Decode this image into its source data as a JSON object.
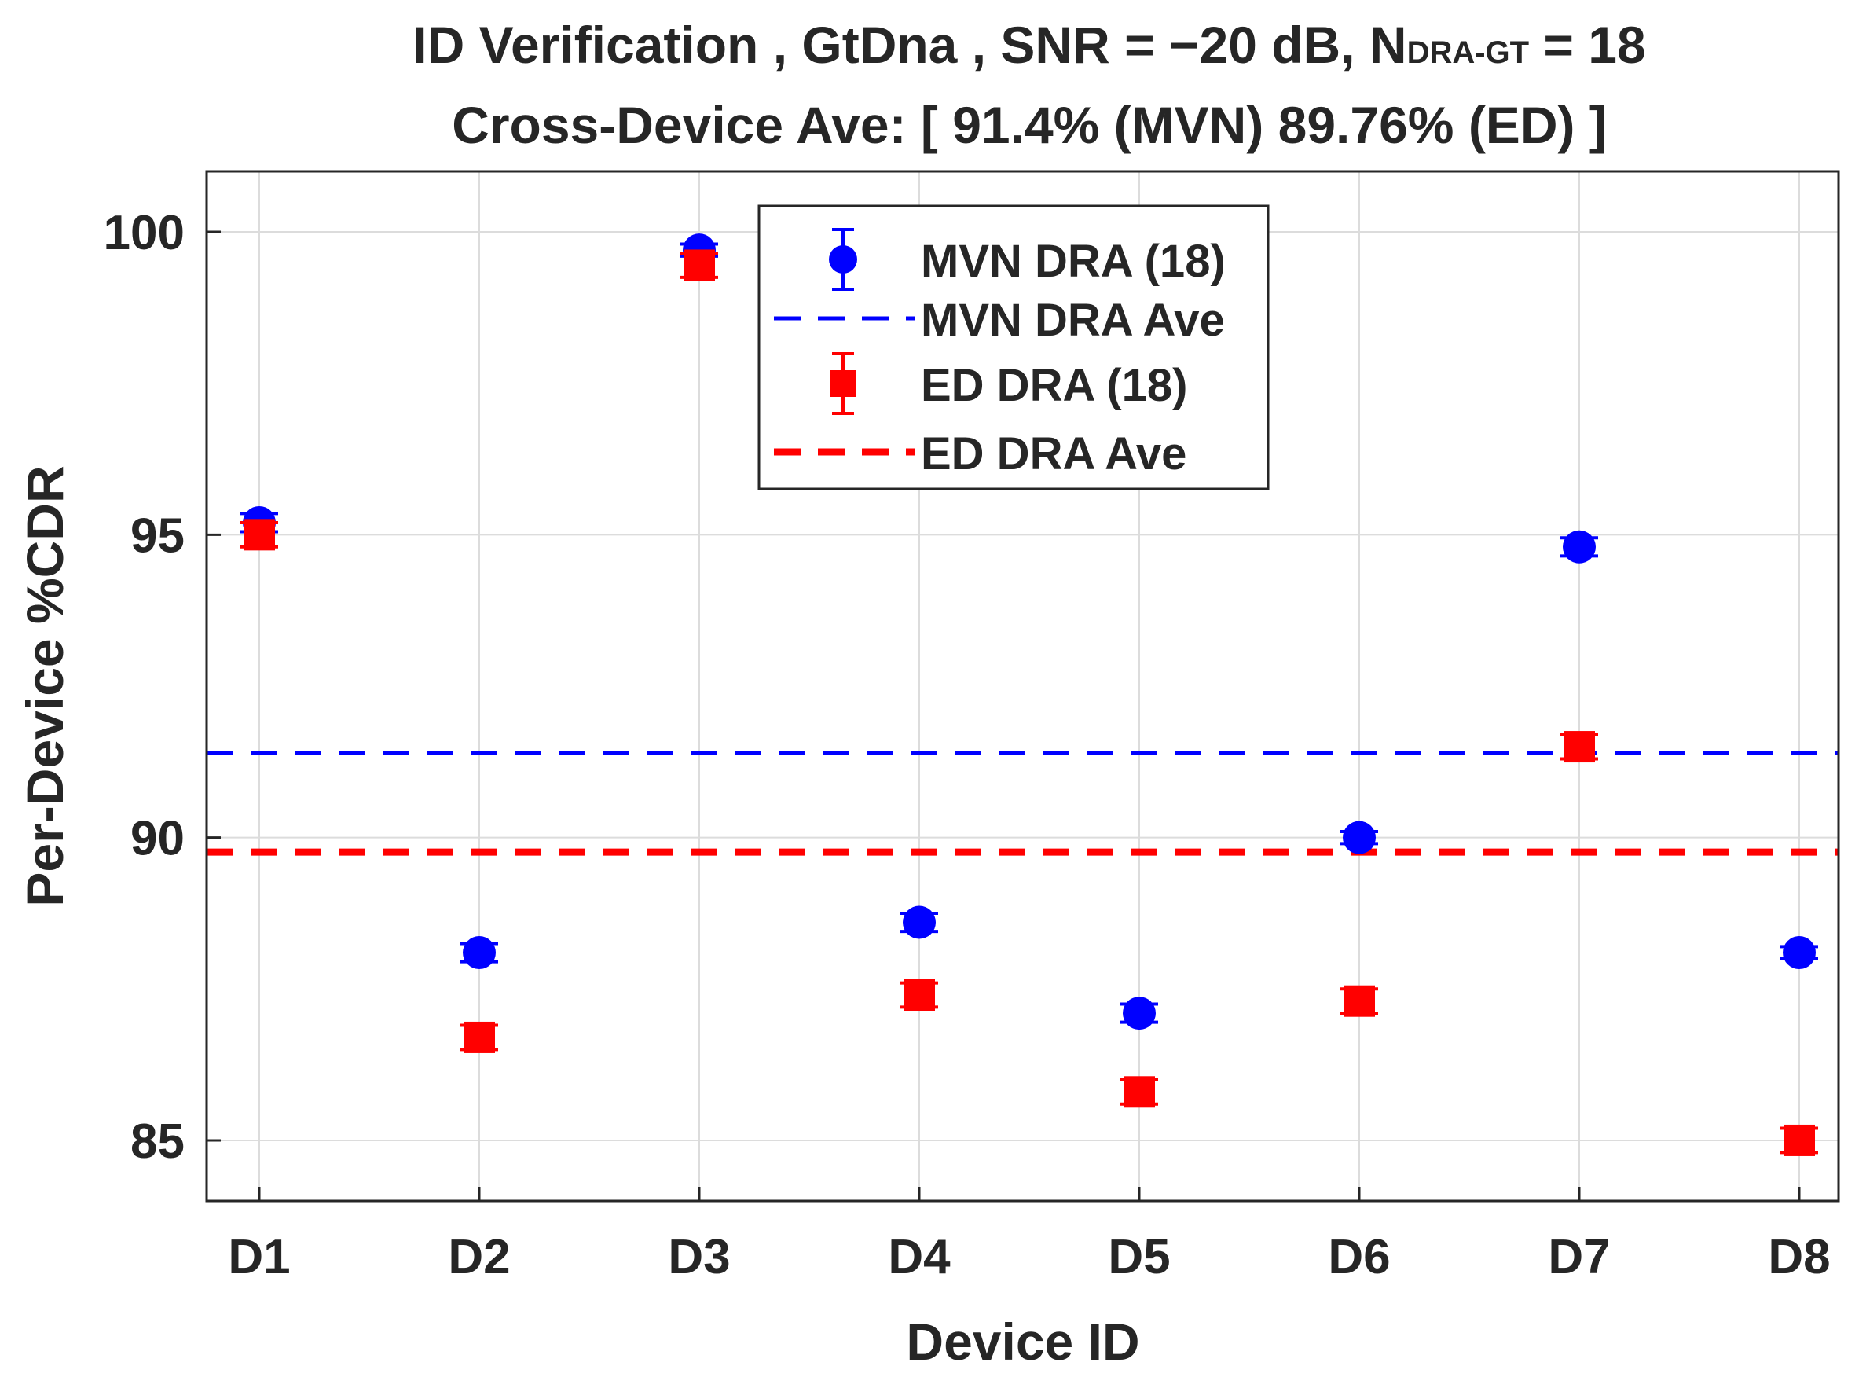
{
  "chart_data": {
    "type": "scatter",
    "title_line1": {
      "prefix": "ID Verification , GtDna , SNR = −20 dB, N",
      "subscript": "DRA-GT",
      "suffix": " = 18"
    },
    "title_line2": "Cross-Device Ave: [ 91.4% (MVN)   89.76% (ED) ]",
    "xlabel": "Device ID",
    "ylabel": "Per-Device %CDR",
    "categories": [
      "D1",
      "D2",
      "D3",
      "D4",
      "D5",
      "D6",
      "D7",
      "D8"
    ],
    "ylim": [
      84,
      101
    ],
    "yticks": [
      85,
      90,
      95,
      100
    ],
    "grid": true,
    "legend_position": "top-center",
    "series": [
      {
        "name": "MVN DRA (18)",
        "kind": "points",
        "marker": "circle",
        "color": "#0000ff",
        "values": [
          95.2,
          88.1,
          99.7,
          88.6,
          87.1,
          90.0,
          94.8,
          88.1
        ],
        "err": [
          0.15,
          0.15,
          0.1,
          0.15,
          0.15,
          0.1,
          0.15,
          0.1
        ]
      },
      {
        "name": "MVN DRA Ave",
        "kind": "hline",
        "color": "#0000ff",
        "value": 91.4
      },
      {
        "name": "ED DRA (18)",
        "kind": "points",
        "marker": "square",
        "color": "#ff0000",
        "values": [
          95.0,
          86.7,
          99.45,
          87.4,
          85.8,
          87.3,
          91.5,
          85.0
        ],
        "err": [
          0.2,
          0.2,
          0.2,
          0.2,
          0.2,
          0.2,
          0.2,
          0.2
        ]
      },
      {
        "name": "ED DRA Ave",
        "kind": "hline",
        "color": "#ff0000",
        "value": 89.76
      }
    ]
  }
}
